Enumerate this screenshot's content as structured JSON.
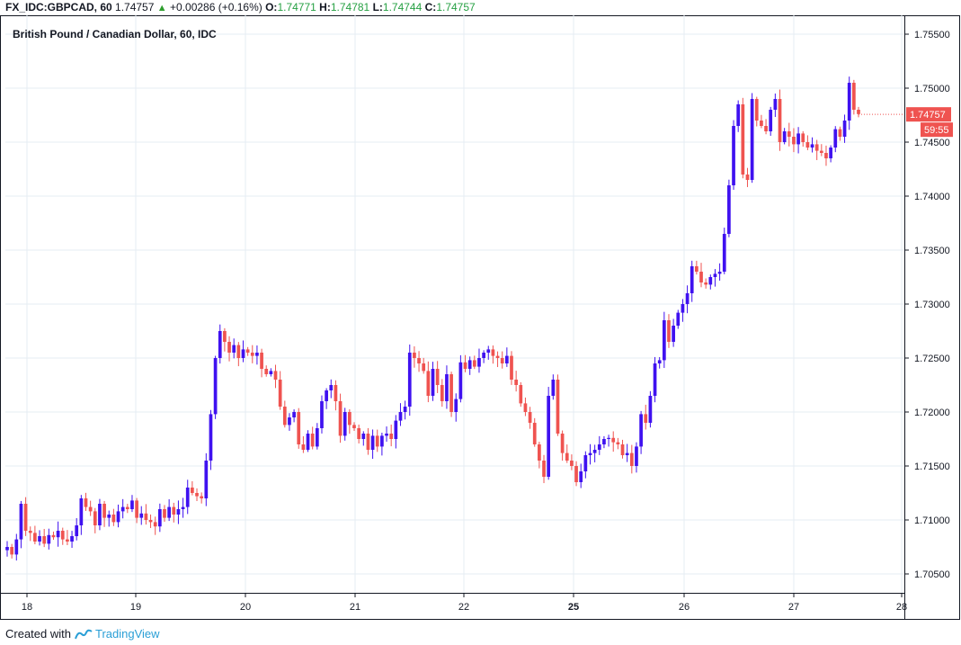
{
  "header": {
    "symbol": "FX_IDC:GBPCAD, 60",
    "last": "1.74757",
    "change_arrow": "▲",
    "change": "+0.00286 (+0.16%)",
    "o_label": "O:",
    "o_value": "1.74771",
    "h_label": "H:",
    "h_value": "1.74781",
    "l_label": "L:",
    "l_value": "1.74744",
    "c_label": "C:",
    "c_value": "1.74757"
  },
  "title": "British Pound / Canadian Dollar, 60, IDC",
  "footer": {
    "created_with": "Created with",
    "brand": "TradingView"
  },
  "colors": {
    "up": "#3f11f0",
    "down": "#ef5350",
    "grid": "#e6ecf3",
    "axis": "#131722",
    "price_tag": "#ef5350"
  },
  "chart_data": {
    "type": "candlestick",
    "ylim": [
      1.7025,
      1.7565
    ],
    "y_ticks": [
      "1.70500",
      "1.71000",
      "1.71500",
      "1.72000",
      "1.72500",
      "1.73000",
      "1.73500",
      "1.74000",
      "1.74500",
      "1.75000",
      "1.75500"
    ],
    "x_tick_labels": [
      "18",
      "19",
      "20",
      "21",
      "22",
      "25",
      "26",
      "27",
      "28"
    ],
    "current_price": "1.74757",
    "countdown": "59:55",
    "closes": [
      1.7075,
      1.7068,
      1.7082,
      1.7115,
      1.709,
      1.7088,
      1.708,
      1.7085,
      1.7078,
      1.7086,
      1.7084,
      1.709,
      1.7082,
      1.708,
      1.7085,
      1.7095,
      1.712,
      1.7112,
      1.7108,
      1.7095,
      1.7115,
      1.7102,
      1.7105,
      1.7098,
      1.7108,
      1.7112,
      1.711,
      1.7118,
      1.7102,
      1.7106,
      1.71,
      1.7098,
      1.7094,
      1.711,
      1.7102,
      1.7112,
      1.7105,
      1.711,
      1.7112,
      1.713,
      1.7125,
      1.7122,
      1.712,
      1.7155,
      1.7198,
      1.725,
      1.7275,
      1.7265,
      1.7255,
      1.7262,
      1.725,
      1.7258,
      1.7255,
      1.7252,
      1.7255,
      1.724,
      1.7235,
      1.7238,
      1.723,
      1.7205,
      1.7188,
      1.7195,
      1.72,
      1.717,
      1.7165,
      1.718,
      1.7168,
      1.7185,
      1.721,
      1.722,
      1.7225,
      1.721,
      1.7178,
      1.72,
      1.7188,
      1.7185,
      1.7175,
      1.718,
      1.7165,
      1.7178,
      1.7168,
      1.7178,
      1.718,
      1.7175,
      1.7192,
      1.72,
      1.7205,
      1.7255,
      1.725,
      1.7245,
      1.7238,
      1.7215,
      1.724,
      1.7225,
      1.721,
      1.7235,
      1.72,
      1.7212,
      1.7246,
      1.724,
      1.7248,
      1.7242,
      1.725,
      1.7255,
      1.7258,
      1.7252,
      1.725,
      1.7245,
      1.7252,
      1.723,
      1.7225,
      1.7208,
      1.72,
      1.719,
      1.717,
      1.7155,
      1.714,
      1.7215,
      1.723,
      1.718,
      1.7162,
      1.7155,
      1.715,
      1.7135,
      1.7145,
      1.716,
      1.7162,
      1.7165,
      1.717,
      1.7175,
      1.7176,
      1.7172,
      1.717,
      1.716,
      1.7162,
      1.715,
      1.7168,
      1.7198,
      1.719,
      1.7215,
      1.7245,
      1.7248,
      1.7285,
      1.7265,
      1.728,
      1.7292,
      1.73,
      1.731,
      1.7335,
      1.733,
      1.732,
      1.7318,
      1.7325,
      1.7328,
      1.733,
      1.7365,
      1.741,
      1.7465,
      1.7485,
      1.742,
      1.7415,
      1.749,
      1.747,
      1.7465,
      1.746,
      1.748,
      1.749,
      1.745,
      1.746,
      1.7455,
      1.7448,
      1.7458,
      1.745,
      1.7445,
      1.7448,
      1.7442,
      1.744,
      1.7435,
      1.7445,
      1.7462,
      1.7455,
      1.747,
      1.7505,
      1.748,
      1.7476
    ]
  }
}
